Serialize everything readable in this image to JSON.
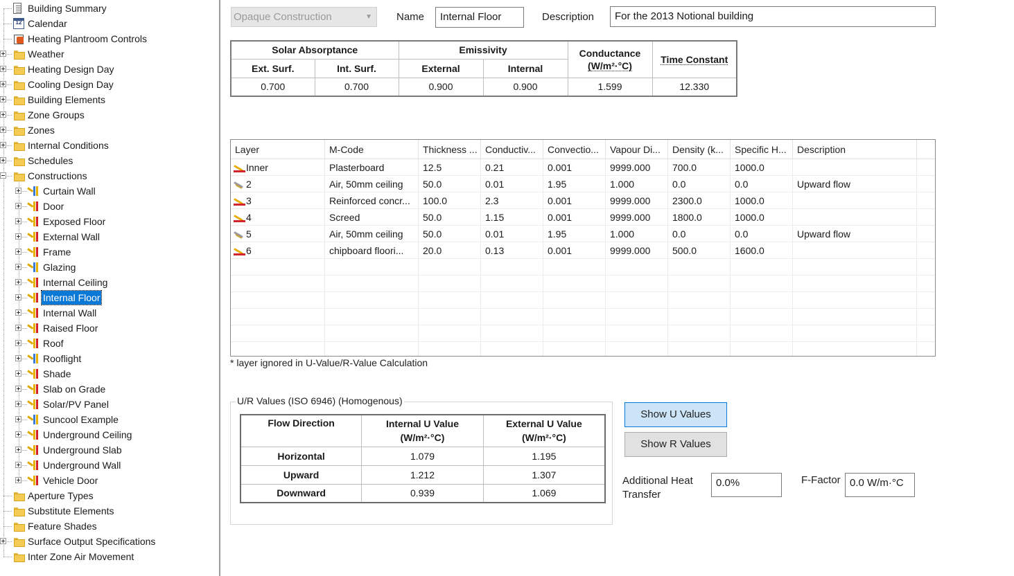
{
  "tree": {
    "items": [
      {
        "label": "Building Summary",
        "icon": "document-icon"
      },
      {
        "label": "Calendar",
        "icon": "calendar-icon",
        "icon_text": "12"
      },
      {
        "label": "Heating Plantroom Controls",
        "icon": "plantroom-icon"
      },
      {
        "label": "Weather",
        "icon": "folder-icon"
      },
      {
        "label": "Heating Design Day",
        "icon": "folder-icon"
      },
      {
        "label": "Cooling Design Day",
        "icon": "folder-icon"
      },
      {
        "label": "Building Elements",
        "icon": "folder-icon"
      },
      {
        "label": "Zone Groups",
        "icon": "folder-icon"
      },
      {
        "label": "Zones",
        "icon": "folder-icon"
      },
      {
        "label": "Internal Conditions",
        "icon": "folder-icon"
      },
      {
        "label": "Schedules",
        "icon": "folder-icon"
      },
      {
        "label": "Constructions",
        "icon": "folder-icon"
      },
      {
        "label": "Curtain Wall",
        "icon": "construction-icon"
      },
      {
        "label": "Door",
        "icon": "construction-icon"
      },
      {
        "label": "Exposed Floor",
        "icon": "construction-icon"
      },
      {
        "label": "External Wall",
        "icon": "construction-icon"
      },
      {
        "label": "Frame",
        "icon": "construction-icon"
      },
      {
        "label": "Glazing",
        "icon": "construction-icon"
      },
      {
        "label": "Internal Ceiling",
        "icon": "construction-icon"
      },
      {
        "label": "Internal Floor",
        "icon": "construction-icon"
      },
      {
        "label": "Internal Wall",
        "icon": "construction-icon"
      },
      {
        "label": "Raised Floor",
        "icon": "construction-icon"
      },
      {
        "label": "Roof",
        "icon": "construction-icon"
      },
      {
        "label": "Rooflight",
        "icon": "construction-icon"
      },
      {
        "label": "Shade",
        "icon": "construction-icon"
      },
      {
        "label": "Slab on Grade",
        "icon": "construction-icon"
      },
      {
        "label": "Solar/PV Panel",
        "icon": "construction-icon"
      },
      {
        "label": "Suncool Example",
        "icon": "construction-icon"
      },
      {
        "label": "Underground Ceiling",
        "icon": "construction-icon"
      },
      {
        "label": "Underground Slab",
        "icon": "construction-icon"
      },
      {
        "label": "Underground Wall",
        "icon": "construction-icon"
      },
      {
        "label": "Vehicle Door",
        "icon": "construction-icon"
      },
      {
        "label": "Aperture Types",
        "icon": "folder-icon"
      },
      {
        "label": "Substitute Elements",
        "icon": "folder-icon"
      },
      {
        "label": "Feature Shades",
        "icon": "folder-icon"
      },
      {
        "label": "Surface Output Specifications",
        "icon": "folder-icon"
      },
      {
        "label": "Inter Zone Air Movement",
        "icon": "folder-icon"
      }
    ]
  },
  "form": {
    "type_value": "Opaque Construction",
    "name_label": "Name",
    "name_value": "Internal Floor",
    "description_label": "Description",
    "description_value": "For the 2013 Notional building"
  },
  "properties": {
    "solar_absorptance": "Solar Absorptance",
    "emissivity": "Emissivity",
    "conductance": "Conductance",
    "conductance_unit": "(W/m²·°C)",
    "time_constant": "Time Constant",
    "ext_surf": "Ext. Surf.",
    "int_surf": "Int. Surf.",
    "external": "External",
    "internal": "Internal",
    "values": {
      "ext_surf": "0.700",
      "int_surf": "0.700",
      "external": "0.900",
      "internal": "0.900",
      "conductance": "1.599",
      "time_constant": "12.330"
    }
  },
  "layers": {
    "columns": [
      "Layer",
      "M-Code",
      "Thickness ...",
      "Conductiv...",
      "Convectio...",
      "Vapour Di...",
      "Density (k...",
      "Specific H...",
      "Description"
    ],
    "rows": [
      [
        "Inner",
        "Plasterboard",
        "12.5",
        "0.21",
        "0.001",
        "9999.000",
        "700.0",
        "1000.0",
        ""
      ],
      [
        "2",
        "Air, 50mm ceiling",
        "50.0",
        "0.01",
        "1.95",
        "1.000",
        "0.0",
        "0.0",
        "Upward flow"
      ],
      [
        "3",
        "Reinforced concr...",
        "100.0",
        "2.3",
        "0.001",
        "9999.000",
        "2300.0",
        "1000.0",
        ""
      ],
      [
        "4",
        "Screed",
        "50.0",
        "1.15",
        "0.001",
        "9999.000",
        "1800.0",
        "1000.0",
        ""
      ],
      [
        "5",
        "Air, 50mm ceiling",
        "50.0",
        "0.01",
        "1.95",
        "1.000",
        "0.0",
        "0.0",
        "Upward flow"
      ],
      [
        "6",
        "chipboard floori...",
        "20.0",
        "0.13",
        "0.001",
        "9999.000",
        "500.0",
        "1600.0",
        ""
      ]
    ],
    "note": "* layer ignored in U-Value/R-Value Calculation"
  },
  "ur_values": {
    "group_title": "U/R Values (ISO 6946) (Homogenous)",
    "col_flow": "Flow Direction",
    "col_internal": "Internal U Value",
    "col_external": "External U Value",
    "unit": "(W/m²·°C)",
    "rows": [
      [
        "Horizontal",
        "1.079",
        "1.195"
      ],
      [
        "Upward",
        "1.212",
        "1.307"
      ],
      [
        "Downward",
        "0.939",
        "1.069"
      ]
    ]
  },
  "buttons": {
    "show_u": "Show U Values",
    "show_r": "Show R Values"
  },
  "extra": {
    "additional_heat_label_1": "Additional Heat",
    "additional_heat_label_2": "Transfer",
    "additional_heat_value": "0.0%",
    "f_factor_label": "F-Factor",
    "f_factor_value": "0.0 W/m·°C"
  },
  "colors": {
    "selection": "#0a78d7",
    "button_blue_bg": "#cce4f7",
    "button_blue_border": "#0a78d7",
    "folder": "#f4cc55"
  }
}
